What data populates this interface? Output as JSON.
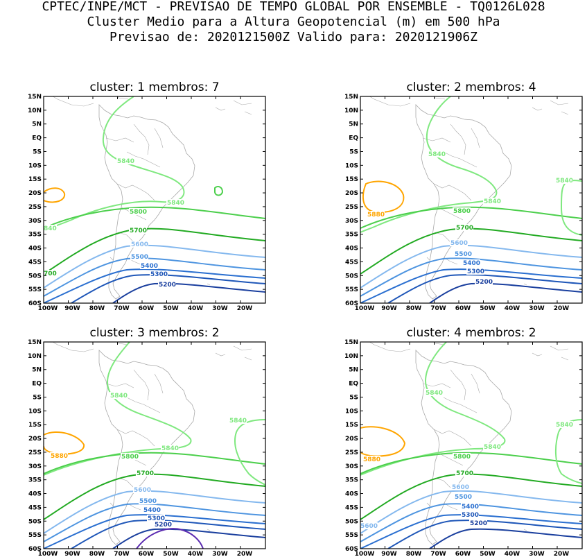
{
  "header": {
    "line1": "CPTEC/INPE/MCT - PREVISAO DE TEMPO GLOBAL POR ENSEMBLE - TQ0126L028",
    "line2": "Cluster Medio para a Altura Geopotencial (m) em 500 hPa",
    "line3": "Previsao de: 2020121500Z    Valido para: 2020121906Z"
  },
  "axes": {
    "lat_ticks": [
      "15N",
      "10N",
      "5N",
      "EQ",
      "5S",
      "10S",
      "15S",
      "20S",
      "25S",
      "30S",
      "35S",
      "40S",
      "45S",
      "50S",
      "55S",
      "60S"
    ],
    "lon_ticks": [
      "100W",
      "90W",
      "80W",
      "70W",
      "60W",
      "50W",
      "40W",
      "30W",
      "20W"
    ]
  },
  "colors": {
    "c5880": "#ffa500",
    "c5840": "#7fe87f",
    "c5800": "#4ccf4c",
    "c5700": "#22aa22",
    "c5600": "#84b8ee",
    "c5500": "#4d94e0",
    "c5400": "#2a6fd0",
    "c5300": "#1e56b8",
    "c5200": "#1a3f9e",
    "c5100": "#5a2ab0",
    "coast": "#a8a8a8"
  },
  "panels": [
    {
      "title": "cluster: 1   membros: 7",
      "labels": {
        "l5840a": "5840",
        "l5840b": "5840",
        "l5840c": "840",
        "l5800": "5800",
        "l5700": "5700",
        "l5700b": "700",
        "l5600": "5600",
        "l5500": "5500",
        "l5400": "5400",
        "l5300": "5300",
        "l5200": "5200"
      }
    },
    {
      "title": "cluster: 2   membros: 4",
      "labels": {
        "l5840a": "5840",
        "l5840b": "5840",
        "l5840c": "5840",
        "l5880": "5880",
        "l5800": "5800",
        "l5700": "5700",
        "l5600": "5600",
        "l5500": "5500",
        "l5400": "5400",
        "l5300": "5300",
        "l5200": "5200"
      }
    },
    {
      "title": "cluster: 3   membros: 2",
      "labels": {
        "l5840a": "5840",
        "l5840b": "5840",
        "l5840c": "5840",
        "l5880": "5880",
        "l5800": "5800",
        "l5700": "5700",
        "l5600": "5600",
        "l5500": "5500",
        "l5400": "5400",
        "l5300": "5300",
        "l5200": "5200"
      }
    },
    {
      "title": "cluster: 4   membros: 2",
      "labels": {
        "l5840a": "5840",
        "l5840b": "5840",
        "l5840c": "5840",
        "l5880": "5880",
        "l5800": "5800",
        "l5700": "5700",
        "l5600": "5600",
        "l5600b": "5600",
        "l5500": "5500",
        "l5400": "5400",
        "l5300": "5300",
        "l5200": "5200"
      }
    }
  ]
}
